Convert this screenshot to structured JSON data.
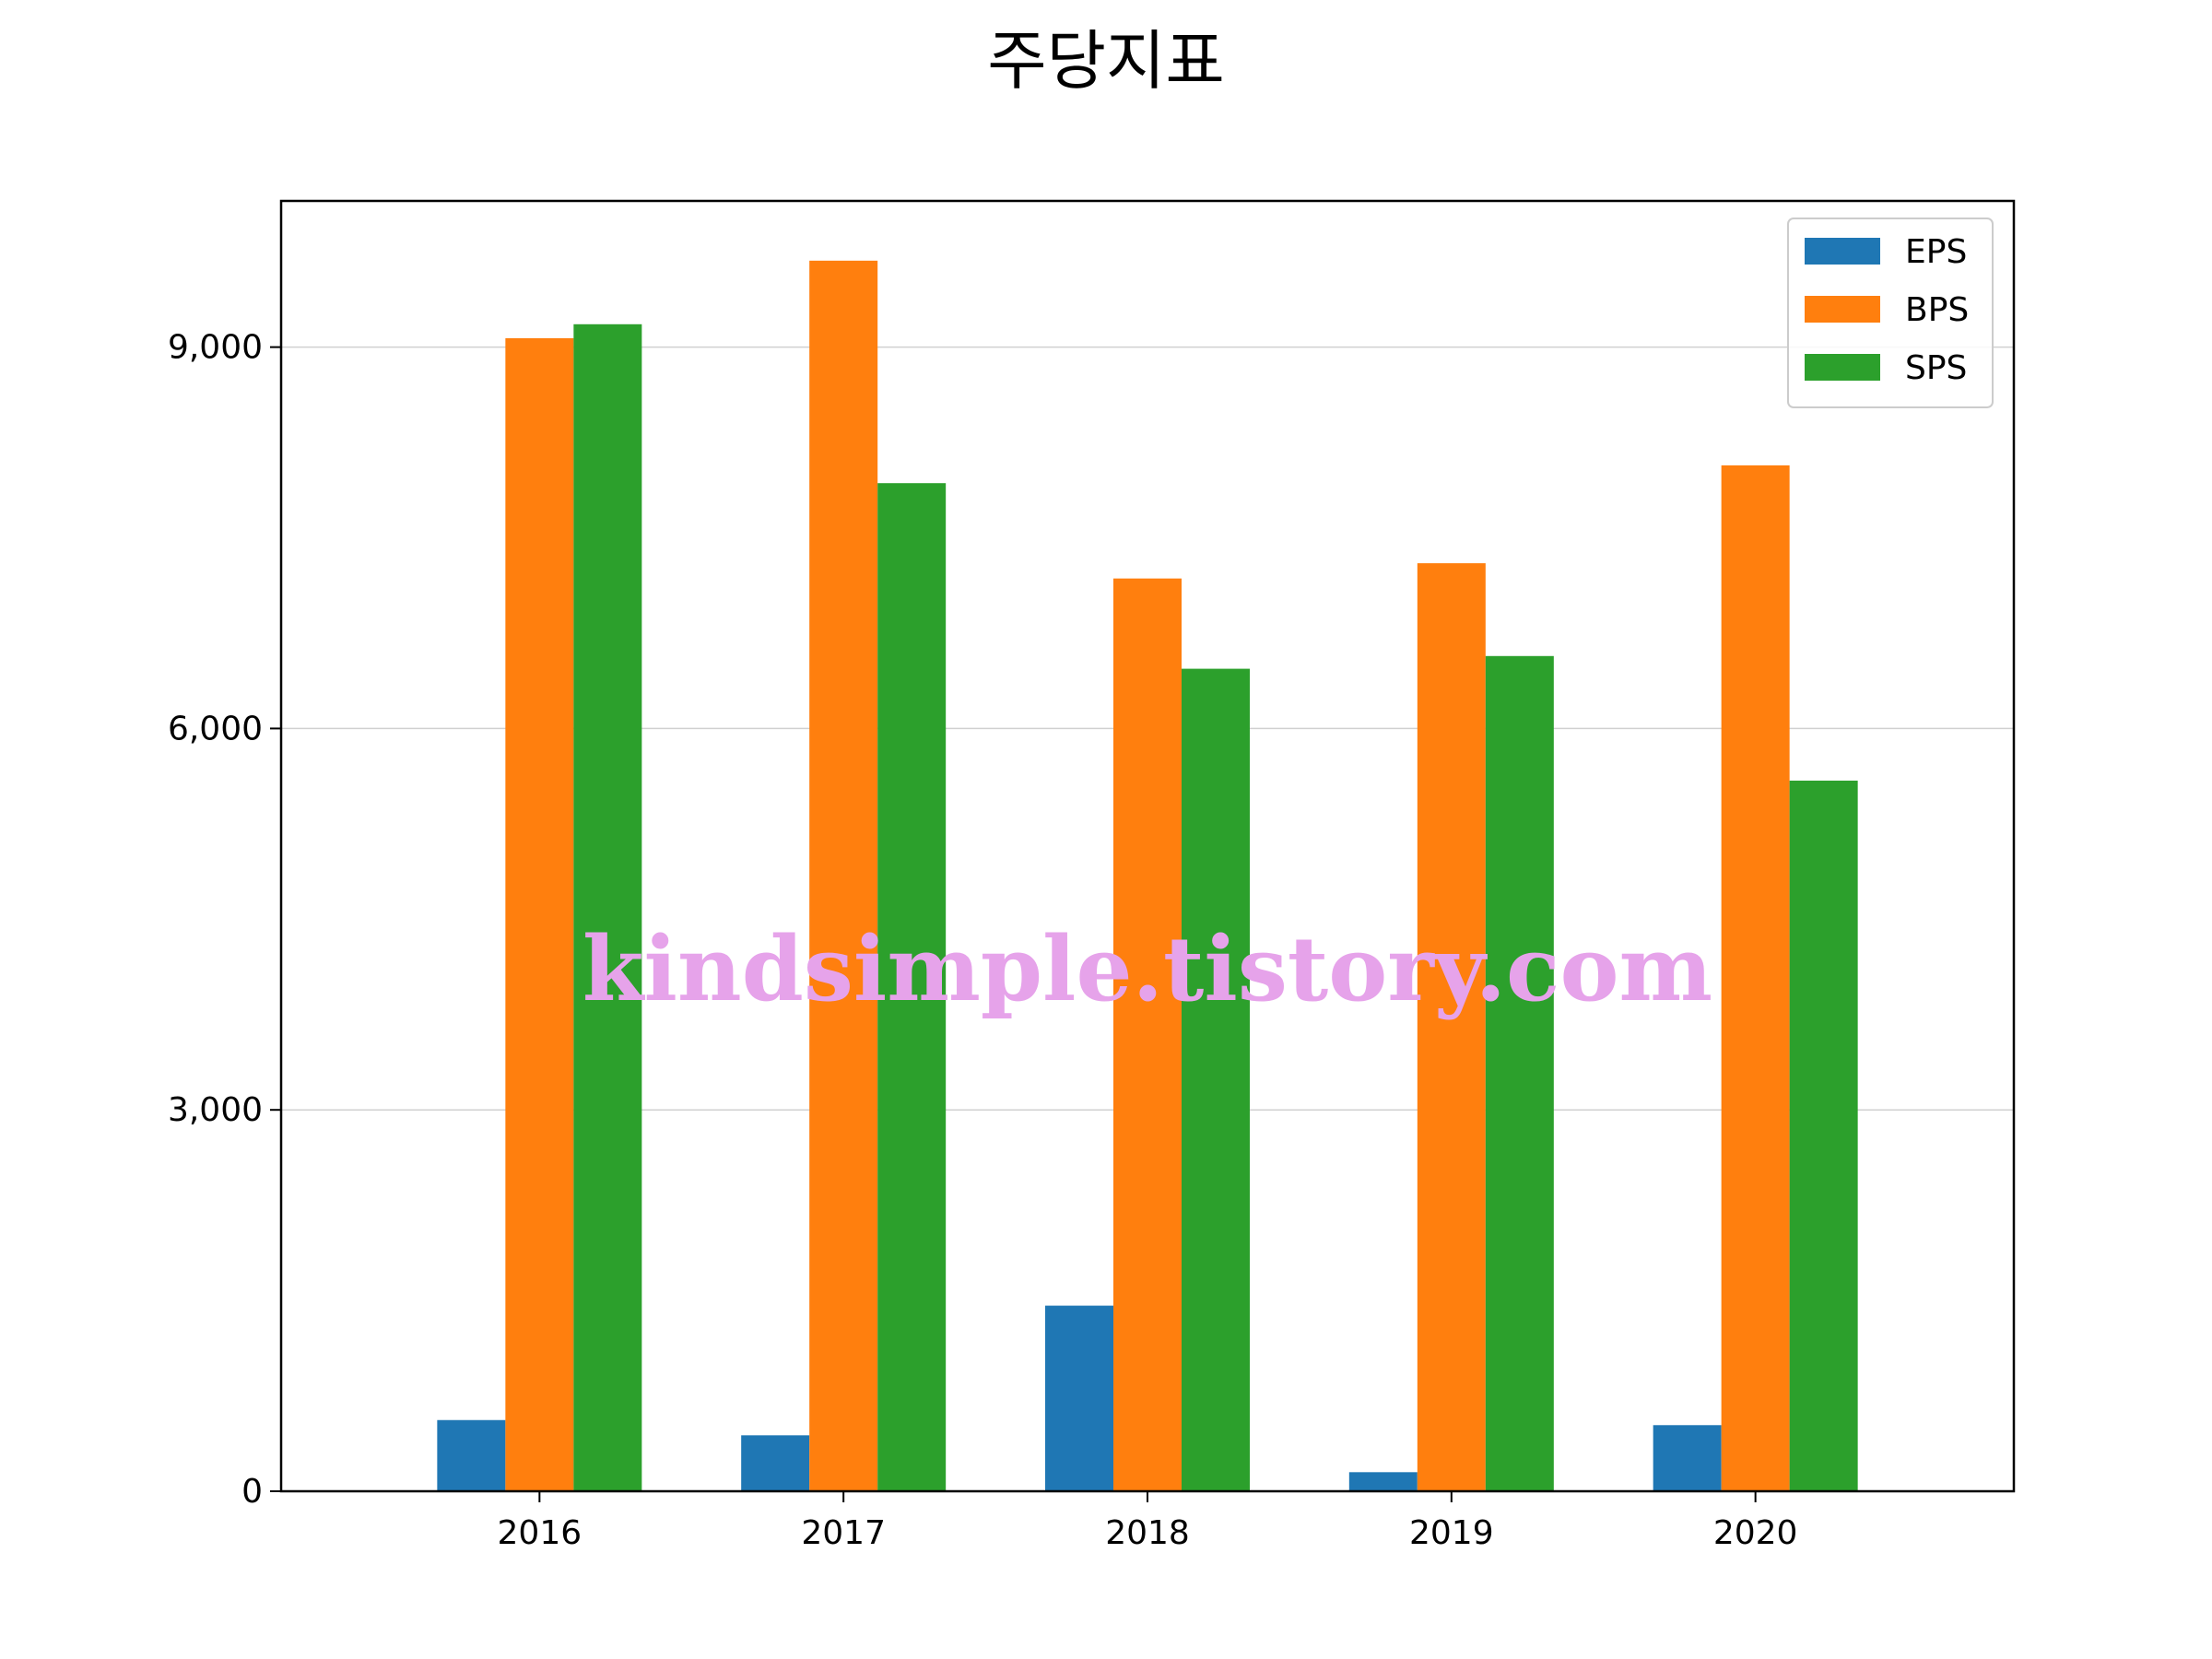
{
  "chart_data": {
    "type": "bar",
    "title": "주당지표",
    "xlabel": "",
    "ylabel": "",
    "categories": [
      "2016",
      "2017",
      "2018",
      "2019",
      "2020"
    ],
    "series": [
      {
        "name": "EPS",
        "color": "#1f77b4",
        "values": [
          560,
          440,
          1460,
          150,
          520
        ]
      },
      {
        "name": "BPS",
        "color": "#ff7f0e",
        "values": [
          9070,
          9680,
          7180,
          7300,
          8070
        ]
      },
      {
        "name": "SPS",
        "color": "#2ca02c",
        "values": [
          9180,
          7930,
          6470,
          6570,
          5590
        ]
      }
    ],
    "ylim": [
      0,
      10150
    ],
    "yticks": [
      {
        "value": 0,
        "label": "0"
      },
      {
        "value": 3000,
        "label": "3,000"
      },
      {
        "value": 6000,
        "label": "6,000"
      },
      {
        "value": 9000,
        "label": "9,000"
      }
    ],
    "grid": "horizontal",
    "legend_position": "top-right",
    "watermark": "kindsimple.tistory.com",
    "watermark_color": "#e6a3ea"
  }
}
